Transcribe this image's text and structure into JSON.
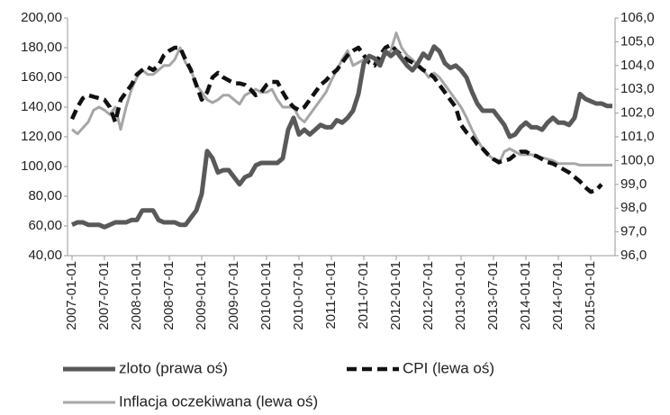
{
  "chart_data": {
    "type": "line",
    "categories": [
      "2007-01-01",
      null,
      null,
      null,
      null,
      null,
      "2007-07-01",
      null,
      null,
      null,
      null,
      null,
      "2008-01-01",
      null,
      null,
      null,
      null,
      null,
      "2008-07-01",
      null,
      null,
      null,
      null,
      null,
      "2009-01-01",
      null,
      null,
      null,
      null,
      null,
      "2009-07-01",
      null,
      null,
      null,
      null,
      null,
      "2010-01-01",
      null,
      null,
      null,
      null,
      null,
      "2010-07-01",
      null,
      null,
      null,
      null,
      null,
      "2011-01-01",
      null,
      null,
      null,
      null,
      null,
      "2011-07-01",
      null,
      null,
      null,
      null,
      null,
      "2012-01-01",
      null,
      null,
      null,
      null,
      null,
      "2012-07-01",
      null,
      null,
      null,
      null,
      null,
      "2013-01-01",
      null,
      null,
      null,
      null,
      null,
      "2013-07-01",
      null,
      null,
      null,
      null,
      null,
      "2014-01-01",
      null,
      null,
      null,
      null,
      null,
      "2014-07-01",
      null,
      null,
      null,
      null,
      null,
      "2015-01-01",
      null,
      null,
      null,
      null
    ],
    "series": [
      {
        "name": "zloto (prawa oś)",
        "color": "#595959",
        "axis": "y2",
        "values": [
          97.3,
          97.4,
          97.4,
          97.3,
          97.3,
          97.3,
          97.2,
          97.3,
          97.4,
          97.4,
          97.4,
          97.5,
          97.5,
          97.9,
          97.9,
          97.9,
          97.5,
          97.4,
          97.4,
          97.4,
          97.3,
          97.3,
          97.6,
          97.9,
          98.6,
          100.4,
          100.1,
          99.5,
          99.6,
          99.6,
          99.3,
          99.0,
          99.3,
          99.4,
          99.8,
          99.9,
          99.9,
          99.9,
          99.9,
          100.1,
          101.3,
          101.8,
          101.1,
          101.3,
          101.1,
          101.3,
          101.5,
          101.4,
          101.4,
          101.7,
          101.6,
          101.8,
          102.1,
          102.8,
          104.1,
          104.4,
          104.3,
          104.0,
          104.6,
          104.4,
          104.6,
          104.3,
          104.0,
          103.8,
          104.1,
          104.5,
          104.3,
          104.8,
          104.6,
          104.1,
          103.9,
          104.0,
          103.8,
          103.5,
          102.9,
          102.4,
          102.1,
          102.1,
          102.1,
          101.8,
          101.5,
          101.0,
          101.1,
          101.4,
          101.6,
          101.4,
          101.4,
          101.3,
          101.6,
          101.8,
          101.6,
          101.6,
          101.5,
          101.8,
          102.8,
          102.6,
          102.5,
          102.4,
          102.4,
          102.3,
          102.3
        ]
      },
      {
        "name": "CPI (lewa oś)",
        "color": "#111111",
        "dashed": true,
        "values": [
          132,
          140,
          146,
          148,
          147,
          146,
          145,
          140,
          130,
          145,
          150,
          155,
          162,
          165,
          167,
          165,
          168,
          175,
          178,
          180,
          180,
          172,
          165,
          155,
          145,
          150,
          160,
          163,
          160,
          158,
          156,
          156,
          155,
          152,
          148,
          150,
          155,
          157,
          157,
          150,
          144,
          140,
          138,
          140,
          145,
          150,
          155,
          158,
          162,
          165,
          170,
          175,
          178,
          180,
          175,
          170,
          168,
          175,
          180,
          182,
          178,
          175,
          172,
          170,
          168,
          165,
          163,
          160,
          155,
          150,
          145,
          140,
          128,
          123,
          120,
          115,
          112,
          108,
          105,
          103,
          104,
          105,
          108,
          110,
          110,
          108,
          107,
          105,
          103,
          102,
          100,
          98,
          96,
          93,
          90,
          86,
          83,
          84,
          88,
          null,
          null
        ]
      },
      {
        "name": "Inflacja oczekiwana (lewa oś)",
        "color": "#a6a6a6",
        "values": [
          125,
          122,
          126,
          130,
          138,
          140,
          138,
          135,
          140,
          125,
          140,
          152,
          160,
          165,
          162,
          162,
          165,
          168,
          168,
          172,
          180,
          170,
          165,
          155,
          150,
          145,
          143,
          145,
          148,
          148,
          145,
          142,
          148,
          150,
          152,
          150,
          150,
          152,
          145,
          140,
          140,
          140,
          133,
          130,
          135,
          140,
          145,
          150,
          158,
          165,
          172,
          178,
          168,
          170,
          172,
          175,
          172,
          170,
          175,
          178,
          190,
          180,
          175,
          172,
          168,
          165,
          160,
          163,
          160,
          155,
          150,
          145,
          140,
          133,
          125,
          118,
          112,
          108,
          105,
          102,
          110,
          112,
          110,
          108,
          108,
          108,
          107,
          106,
          105,
          104,
          102,
          102,
          102,
          102,
          101,
          101,
          101,
          101,
          101,
          101,
          101
        ]
      }
    ],
    "ylim": [
      40,
      200
    ],
    "yticks": [
      {
        "value": 40,
        "label": "40,00"
      },
      {
        "value": 60,
        "label": "60,00"
      },
      {
        "value": 80,
        "label": "80,00"
      },
      {
        "value": 100,
        "label": "100,00"
      },
      {
        "value": 120,
        "label": "120,00"
      },
      {
        "value": 140,
        "label": "140,00"
      },
      {
        "value": 160,
        "label": "160,00"
      },
      {
        "value": 180,
        "label": "180,00"
      },
      {
        "value": 200,
        "label": "200,00"
      }
    ],
    "y2lim": [
      96,
      106
    ],
    "y2ticks": [
      {
        "value": 96,
        "label": "96,0"
      },
      {
        "value": 97,
        "label": "97,0"
      },
      {
        "value": 98,
        "label": "98,0"
      },
      {
        "value": 99,
        "label": "99,0"
      },
      {
        "value": 100,
        "label": "100,0"
      },
      {
        "value": 101,
        "label": "101,0"
      },
      {
        "value": 102,
        "label": "102,0"
      },
      {
        "value": 103,
        "label": "103,0"
      },
      {
        "value": 104,
        "label": "104,0"
      },
      {
        "value": 105,
        "label": "105,0"
      },
      {
        "value": 106,
        "label": "106,0"
      }
    ],
    "grid": false,
    "legend": "bottom"
  }
}
